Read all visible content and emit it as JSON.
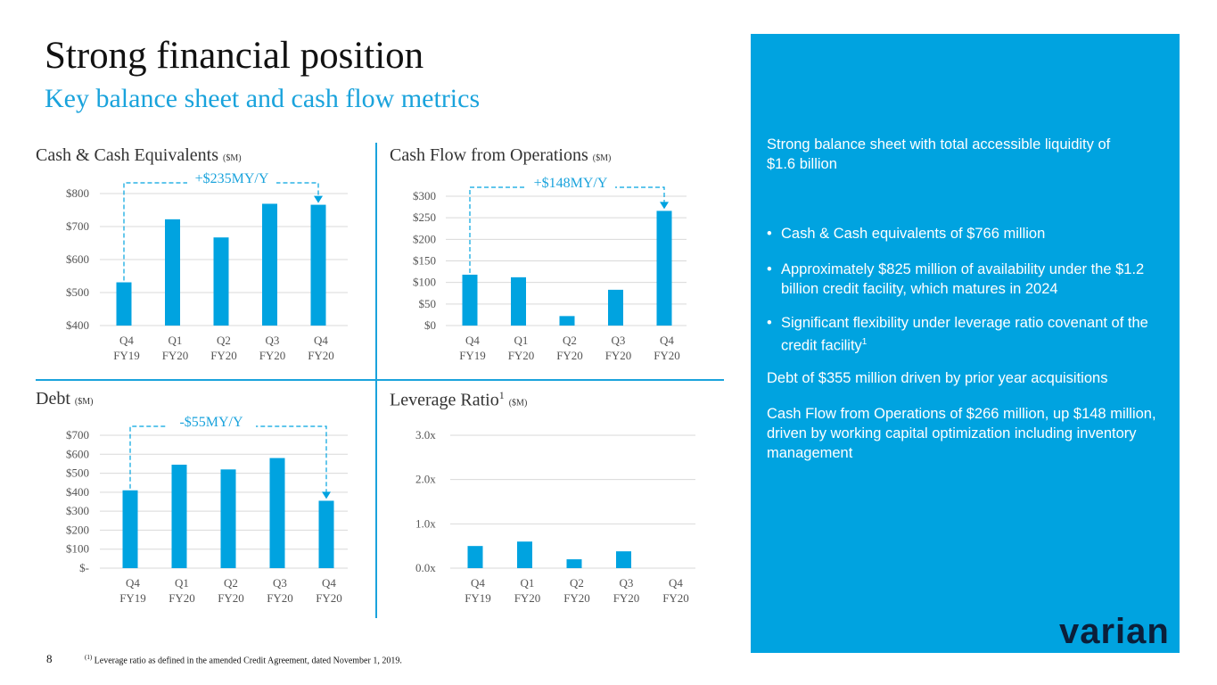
{
  "slide": {
    "title": "Strong financial position",
    "subtitle": "Key balance sheet and cash flow metrics",
    "page_number": "8",
    "footnote_marker": "(1)",
    "footnote_text": "Leverage ratio as defined in the amended Credit Agreement, dated November 1, 2019.",
    "logo_text": "varian",
    "colors": {
      "accent": "#00a3e0",
      "bar": "#00a3e0",
      "gridline": "#d9d9d9"
    }
  },
  "panel": {
    "headline": "Strong balance sheet with total accessible liquidity of $1.6 billion",
    "bullets": [
      "Cash & Cash equivalents of $766 million",
      "Approximately $825 million of availability under the $1.2 billion credit facility, which matures in 2024",
      "Significant flexibility under leverage ratio covenant of the credit facility"
    ],
    "bullet_sup": "1",
    "para1": "Debt of $355 million driven by prior year acquisitions",
    "para2": "Cash Flow from Operations of $266 million, up $148 million, driven by working capital optimization including inventory management"
  },
  "charts": {
    "cash": {
      "title": "Cash & Cash Equivalents",
      "unit": "($M)"
    },
    "cfo": {
      "title": "Cash Flow from Operations",
      "unit": "($M)"
    },
    "debt": {
      "title": "Debt",
      "unit": "($M)"
    },
    "lev": {
      "title": "Leverage Ratio",
      "sup": "1",
      "unit": "($M)"
    }
  },
  "chart_data": [
    {
      "id": "cash",
      "type": "bar",
      "title": "Cash & Cash Equivalents ($M)",
      "categories": [
        "Q4 FY19",
        "Q1 FY20",
        "Q2 FY20",
        "Q3 FY20",
        "Q4 FY20"
      ],
      "cat_lines": [
        [
          "Q4",
          "FY19"
        ],
        [
          "Q1",
          "FY20"
        ],
        [
          "Q2",
          "FY20"
        ],
        [
          "Q3",
          "FY20"
        ],
        [
          "Q4",
          "FY20"
        ]
      ],
      "values": [
        531,
        722,
        667,
        769,
        766
      ],
      "ylim": [
        400,
        800
      ],
      "ticks": [
        400,
        500,
        600,
        700,
        800
      ],
      "tick_labels": [
        "$400",
        "$500",
        "$600",
        "$700",
        "$800"
      ],
      "grid": true,
      "annotation": "+$235MY/Y"
    },
    {
      "id": "cfo",
      "type": "bar",
      "title": "Cash Flow from Operations ($M)",
      "categories": [
        "Q4 FY19",
        "Q1 FY20",
        "Q2 FY20",
        "Q3 FY20",
        "Q4 FY20"
      ],
      "cat_lines": [
        [
          "Q4",
          "FY19"
        ],
        [
          "Q1",
          "FY20"
        ],
        [
          "Q2",
          "FY20"
        ],
        [
          "Q3",
          "FY20"
        ],
        [
          "Q4",
          "FY20"
        ]
      ],
      "values": [
        118,
        112,
        22,
        83,
        266
      ],
      "ylim": [
        0,
        300
      ],
      "ticks": [
        0,
        50,
        100,
        150,
        200,
        250,
        300
      ],
      "tick_labels": [
        "$0",
        "$50",
        "$100",
        "$150",
        "$200",
        "$250",
        "$300"
      ],
      "grid": true,
      "annotation": "+$148MY/Y"
    },
    {
      "id": "debt",
      "type": "bar",
      "title": "Debt ($M)",
      "categories": [
        "Q4 FY19",
        "Q1 FY20",
        "Q2 FY20",
        "Q3 FY20",
        "Q4 FY20"
      ],
      "cat_lines": [
        [
          "Q4",
          "FY19"
        ],
        [
          "Q1",
          "FY20"
        ],
        [
          "Q2",
          "FY20"
        ],
        [
          "Q3",
          "FY20"
        ],
        [
          "Q4",
          "FY20"
        ]
      ],
      "values": [
        410,
        545,
        520,
        580,
        355
      ],
      "ylim": [
        0,
        700
      ],
      "ticks": [
        0,
        100,
        200,
        300,
        400,
        500,
        600,
        700
      ],
      "tick_labels": [
        "$-",
        "$100",
        "$200",
        "$300",
        "$400",
        "$500",
        "$600",
        "$700"
      ],
      "grid": true,
      "annotation": "-$55MY/Y"
    },
    {
      "id": "lev",
      "type": "bar",
      "title": "Leverage Ratio (1) ($M)",
      "categories": [
        "Q4 FY19",
        "Q1 FY20",
        "Q2 FY20",
        "Q3 FY20",
        "Q4 FY20"
      ],
      "cat_lines": [
        [
          "Q4",
          "FY19"
        ],
        [
          "Q1",
          "FY20"
        ],
        [
          "Q2",
          "FY20"
        ],
        [
          "Q3",
          "FY20"
        ],
        [
          "Q4",
          "FY20"
        ]
      ],
      "values": [
        0.5,
        0.6,
        0.2,
        0.38,
        0.0
      ],
      "ylim": [
        0,
        3
      ],
      "ticks": [
        0,
        1,
        2,
        3
      ],
      "tick_labels": [
        "0.0x",
        "1.0x",
        "2.0x",
        "3.0x"
      ],
      "grid": true
    }
  ]
}
